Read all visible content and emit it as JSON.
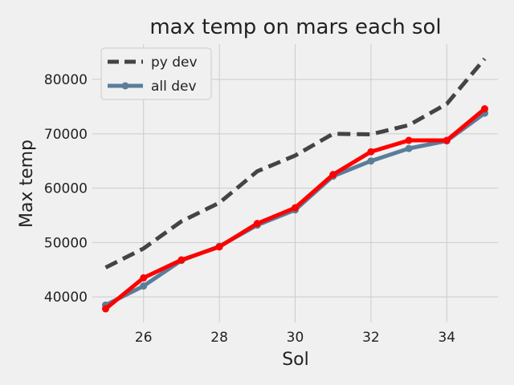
{
  "chart_data": {
    "type": "line",
    "title": "max temp on mars each sol",
    "xlabel": "Sol",
    "ylabel": "Max temp",
    "xlim": [
      24.65,
      35.35
    ],
    "ylim": [
      35300,
      86500
    ],
    "x_ticks": [
      26,
      28,
      30,
      32,
      34
    ],
    "y_ticks": [
      40000,
      50000,
      60000,
      70000,
      80000
    ],
    "grid": true,
    "legend_position": "upper-left",
    "x": [
      25,
      26,
      27,
      28,
      29,
      30,
      31,
      32,
      33,
      34,
      35
    ],
    "series": [
      {
        "name": "py dev",
        "color": "#444444",
        "style": "dashed",
        "marker": false,
        "in_legend": true,
        "values": [
          45400,
          48900,
          53900,
          57300,
          63100,
          66000,
          70000,
          69900,
          71600,
          75500,
          83800
        ]
      },
      {
        "name": "all dev",
        "color": "#5a7d9a",
        "style": "solid",
        "marker": true,
        "in_legend": true,
        "values": [
          38500,
          42000,
          46700,
          49300,
          53200,
          56000,
          62200,
          65000,
          67300,
          68700,
          73800
        ]
      },
      {
        "name": "",
        "color": "#ff0000",
        "style": "solid",
        "marker": true,
        "in_legend": false,
        "values": [
          37800,
          43500,
          46800,
          49200,
          53500,
          56400,
          62500,
          66700,
          68800,
          68800,
          74600
        ]
      }
    ]
  }
}
